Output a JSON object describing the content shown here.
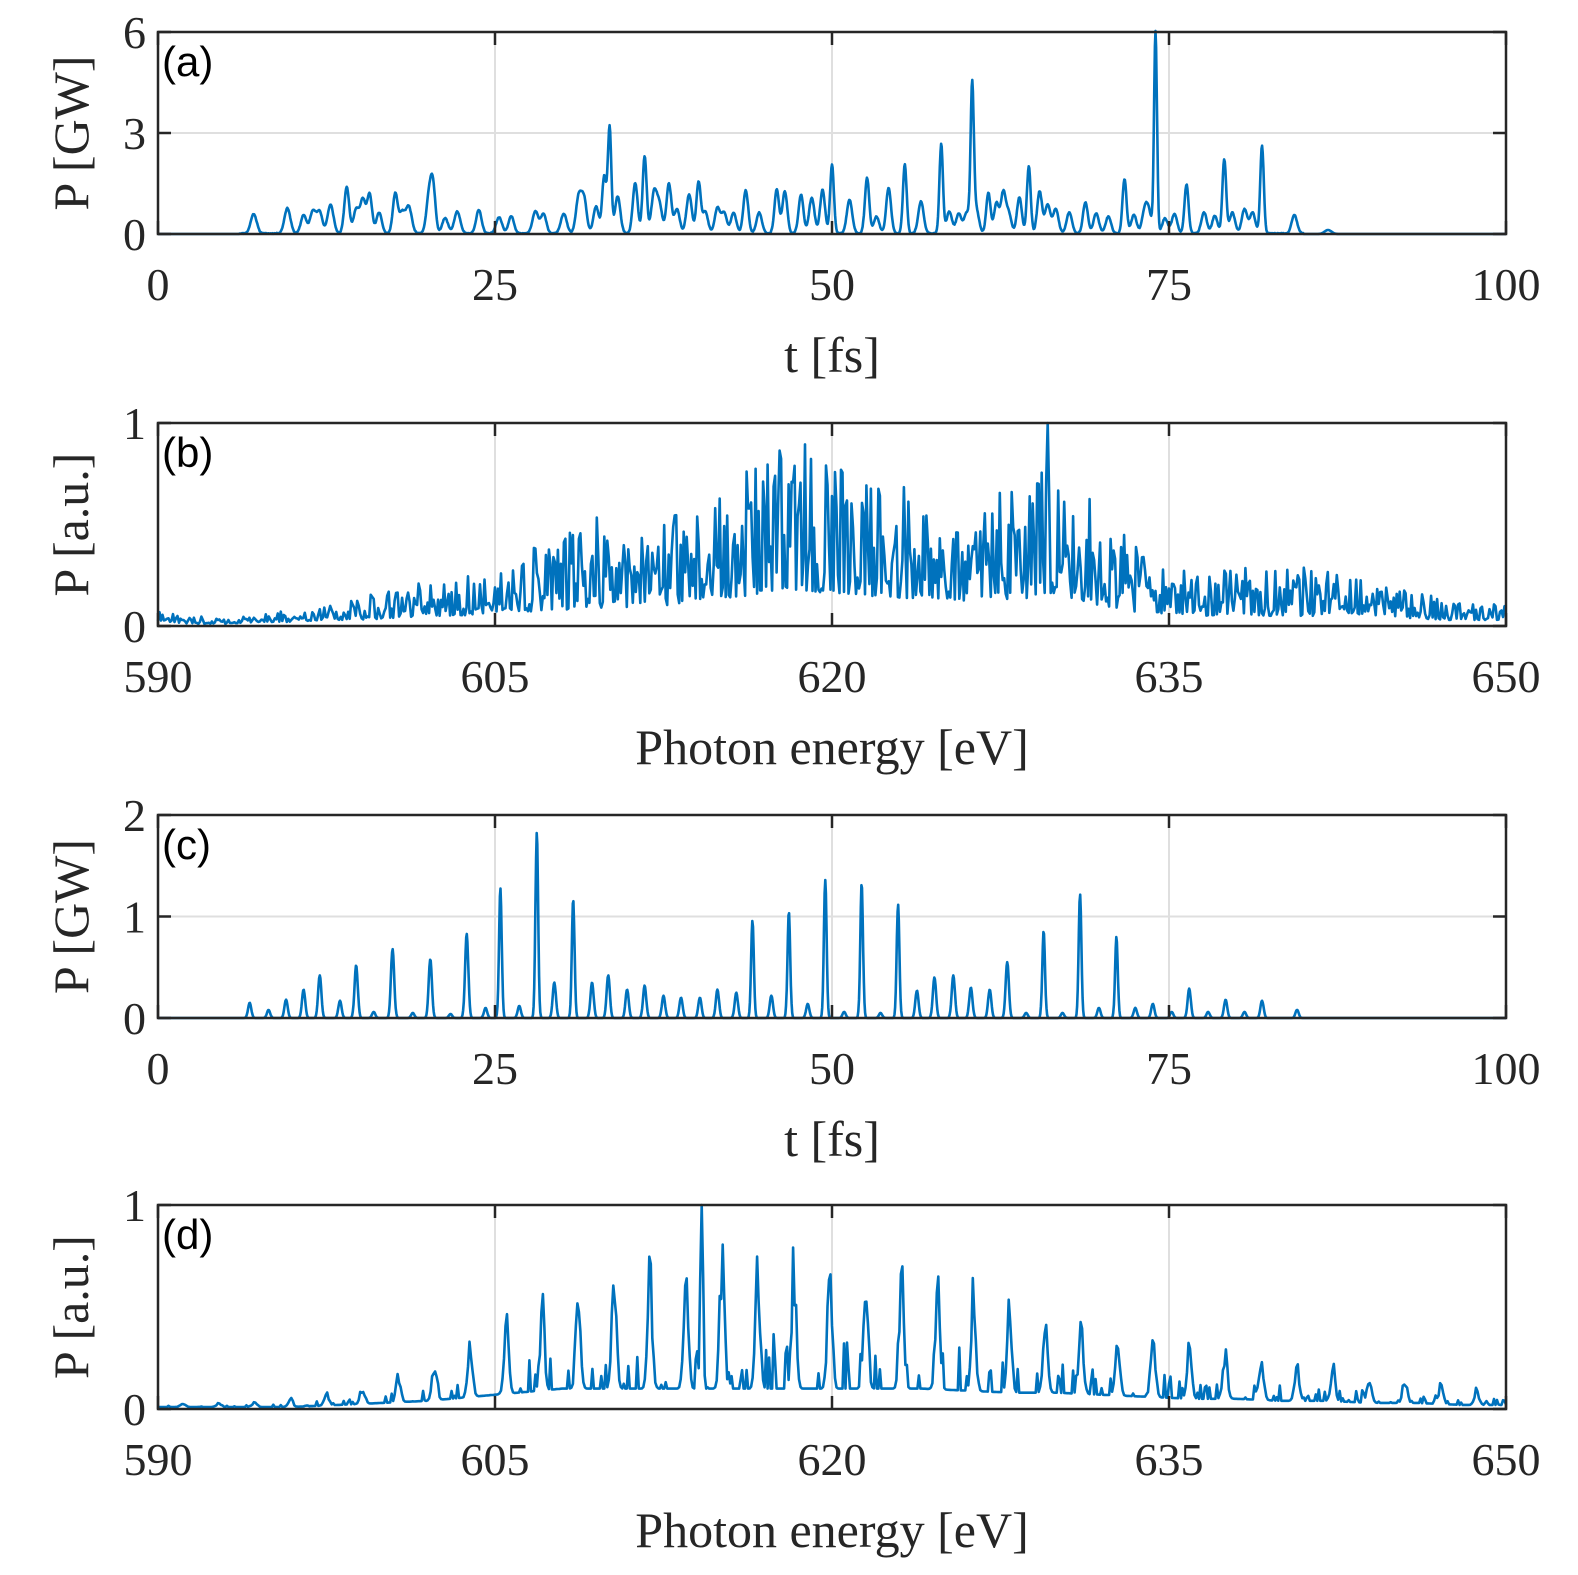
{
  "chart_data": [
    {
      "type": "line",
      "panel_label": "(a)",
      "xlabel": "t [fs]",
      "ylabel": "P [GW]",
      "xlim": [
        0,
        100
      ],
      "ylim": [
        0,
        6
      ],
      "xticks": [
        "0",
        "25",
        "50",
        "75",
        "100"
      ],
      "yticks": [
        "0",
        "3",
        "6"
      ],
      "grid": true,
      "series": [
        {
          "color": "#0072bd",
          "baseline": 0.02,
          "x": [
            7.1,
            9.6,
            10.8,
            11.5,
            12.0,
            12.8,
            14.0,
            14.7,
            15.2,
            15.7,
            16.4,
            17.6,
            18.1,
            18.6,
            20.1,
            20.4,
            21.3,
            22.2,
            23.8,
            25.3,
            26.2,
            28.0,
            28.6,
            30.1,
            31.2,
            31.6,
            32.5,
            33.1,
            33.5,
            34.1,
            35.4,
            36.1,
            36.8,
            37.2,
            37.9,
            38.5,
            39.4,
            40.1,
            40.6,
            41.5,
            42.0,
            42.7,
            43.6,
            44.6,
            45.9,
            46.5,
            47.7,
            48.5,
            49.3,
            50.0,
            51.3,
            52.6,
            53.3,
            54.2,
            55.4,
            56.6,
            58.1,
            58.7,
            59.4,
            60.0,
            60.4,
            60.7,
            61.6,
            62.2,
            62.7,
            63.1,
            63.9,
            64.6,
            65.4,
            66.0,
            66.6,
            67.6,
            68.8,
            69.6,
            70.5,
            71.7,
            72.4,
            73.2,
            73.5,
            74.0,
            74.7,
            75.4,
            76.3,
            77.6,
            78.4,
            79.1,
            79.7,
            80.6,
            81.2,
            81.9,
            84.3,
            86.8
          ],
          "peaks": [
            0.58,
            0.75,
            0.55,
            0.68,
            0.62,
            0.85,
            1.38,
            0.72,
            1.0,
            1.15,
            0.62,
            1.18,
            0.6,
            0.8,
            1.05,
            1.33,
            0.45,
            0.65,
            0.7,
            0.48,
            0.52,
            0.65,
            0.58,
            0.58,
            1.05,
            1.02,
            0.8,
            1.7,
            3.15,
            1.1,
            1.5,
            2.3,
            1.2,
            0.82,
            1.48,
            0.72,
            1.15,
            1.52,
            0.65,
            0.75,
            0.6,
            0.62,
            1.28,
            0.62,
            1.3,
            1.25,
            1.15,
            1.05,
            1.3,
            2.05,
            1.0,
            1.65,
            0.5,
            1.35,
            2.05,
            0.95,
            2.65,
            0.65,
            0.58,
            0.62,
            4.25,
            0.72,
            1.2,
            0.9,
            1.18,
            0.6,
            1.08,
            2.0,
            1.25,
            0.85,
            0.72,
            0.62,
            0.92,
            0.6,
            0.5,
            1.62,
            0.55,
            0.65,
            0.58,
            6.0,
            0.45,
            0.58,
            1.45,
            0.62,
            0.52,
            2.2,
            0.62,
            0.72,
            0.62,
            2.62,
            0.55,
            0.12
          ],
          "widths": [
            0.22,
            0.22,
            0.2,
            0.22,
            0.2,
            0.22,
            0.18,
            0.2,
            0.2,
            0.18,
            0.2,
            0.18,
            0.2,
            0.22,
            0.2,
            0.18,
            0.22,
            0.22,
            0.2,
            0.22,
            0.2,
            0.22,
            0.2,
            0.22,
            0.2,
            0.2,
            0.2,
            0.15,
            0.13,
            0.2,
            0.18,
            0.15,
            0.2,
            0.2,
            0.18,
            0.2,
            0.2,
            0.16,
            0.2,
            0.2,
            0.2,
            0.2,
            0.18,
            0.2,
            0.17,
            0.18,
            0.18,
            0.2,
            0.18,
            0.14,
            0.2,
            0.16,
            0.2,
            0.18,
            0.14,
            0.2,
            0.13,
            0.2,
            0.2,
            0.2,
            0.12,
            0.2,
            0.16,
            0.18,
            0.18,
            0.2,
            0.18,
            0.14,
            0.18,
            0.2,
            0.2,
            0.2,
            0.18,
            0.2,
            0.2,
            0.15,
            0.2,
            0.2,
            0.2,
            0.11,
            0.2,
            0.2,
            0.15,
            0.2,
            0.2,
            0.14,
            0.2,
            0.2,
            0.2,
            0.13,
            0.2,
            0.25
          ]
        }
      ]
    },
    {
      "type": "line",
      "panel_label": "(b)",
      "xlabel": "Photon energy [eV]",
      "ylabel": "P [a.u.]",
      "xlim": [
        590,
        650
      ],
      "ylim": [
        0,
        1
      ],
      "xticks": [
        "590",
        "605",
        "620",
        "635",
        "650"
      ],
      "yticks": [
        "0",
        "1"
      ],
      "grid": true,
      "series": [
        {
          "color": "#0072bd",
          "x": [
            590.0,
            591.5,
            593.0,
            594.5,
            596.0,
            597.5,
            599.0,
            600.5,
            602.0,
            603.5,
            605.0,
            606.5,
            608.0,
            609.5,
            611.0,
            612.5,
            614.0,
            615.5,
            617.0,
            618.5,
            620.0,
            621.5,
            623.0,
            624.5,
            626.0,
            627.5,
            629.0,
            630.5,
            632.0,
            633.5,
            635.0,
            636.5,
            638.0,
            639.5,
            641.0,
            642.5,
            644.0,
            645.5,
            647.0,
            648.5,
            650.0
          ],
          "upper": [
            0.08,
            0.05,
            0.04,
            0.06,
            0.08,
            0.12,
            0.15,
            0.2,
            0.22,
            0.25,
            0.3,
            0.4,
            0.45,
            0.55,
            0.4,
            0.5,
            0.65,
            0.75,
            0.85,
            0.9,
            0.88,
            0.8,
            0.7,
            0.6,
            0.55,
            0.7,
            0.8,
            0.85,
            0.55,
            0.4,
            0.3,
            0.25,
            0.3,
            0.28,
            0.3,
            0.28,
            0.2,
            0.18,
            0.16,
            0.15,
            0.12
          ],
          "lower": [
            0.02,
            0.01,
            0.01,
            0.02,
            0.02,
            0.03,
            0.03,
            0.04,
            0.05,
            0.05,
            0.06,
            0.07,
            0.08,
            0.09,
            0.08,
            0.1,
            0.12,
            0.14,
            0.16,
            0.18,
            0.16,
            0.15,
            0.14,
            0.13,
            0.12,
            0.13,
            0.14,
            0.14,
            0.1,
            0.07,
            0.06,
            0.05,
            0.06,
            0.05,
            0.05,
            0.05,
            0.04,
            0.04,
            0.03,
            0.03,
            0.03
          ],
          "samples": 900,
          "tallest_peak": {
            "x": 629.6,
            "y": 1.0
          }
        }
      ]
    },
    {
      "type": "line",
      "panel_label": "(c)",
      "xlabel": "t [fs]",
      "ylabel": "P [GW]",
      "xlim": [
        0,
        100
      ],
      "ylim": [
        0,
        2
      ],
      "xticks": [
        "0",
        "25",
        "50",
        "75",
        "100"
      ],
      "yticks": [
        "0",
        "1",
        "2"
      ],
      "grid": true,
      "series": [
        {
          "color": "#0072bd",
          "baseline": 0.0,
          "x": [
            6.8,
            8.2,
            9.5,
            10.8,
            12.0,
            13.5,
            14.7,
            16.0,
            17.4,
            18.9,
            20.2,
            21.7,
            22.9,
            24.3,
            25.4,
            26.8,
            28.1,
            29.4,
            30.8,
            32.2,
            33.4,
            34.8,
            36.1,
            37.5,
            38.8,
            40.2,
            41.5,
            42.9,
            44.1,
            45.5,
            46.8,
            48.2,
            49.5,
            50.9,
            52.2,
            53.6,
            54.9,
            56.3,
            57.6,
            59.0,
            60.3,
            61.7,
            63.0,
            64.4,
            65.7,
            67.1,
            68.4,
            69.8,
            71.1,
            72.5,
            73.8,
            75.2,
            76.5,
            77.9,
            79.2,
            80.6,
            81.9,
            84.5
          ],
          "peaks": [
            0.15,
            0.08,
            0.18,
            0.28,
            0.42,
            0.17,
            0.52,
            0.06,
            0.68,
            0.05,
            0.58,
            0.04,
            0.83,
            0.1,
            1.28,
            0.12,
            1.83,
            0.35,
            1.17,
            0.35,
            0.42,
            0.28,
            0.32,
            0.22,
            0.2,
            0.2,
            0.28,
            0.25,
            0.96,
            0.22,
            1.05,
            0.14,
            1.36,
            0.06,
            1.33,
            0.05,
            1.12,
            0.27,
            0.4,
            0.42,
            0.3,
            0.28,
            0.55,
            0.05,
            0.86,
            0.05,
            1.22,
            0.1,
            0.8,
            0.1,
            0.14,
            0.06,
            0.29,
            0.06,
            0.18,
            0.06,
            0.17,
            0.08
          ],
          "widths": [
            0.12,
            0.12,
            0.12,
            0.12,
            0.12,
            0.12,
            0.12,
            0.12,
            0.12,
            0.12,
            0.12,
            0.12,
            0.12,
            0.12,
            0.1,
            0.12,
            0.1,
            0.12,
            0.1,
            0.12,
            0.12,
            0.12,
            0.12,
            0.12,
            0.12,
            0.12,
            0.12,
            0.12,
            0.1,
            0.12,
            0.1,
            0.12,
            0.1,
            0.12,
            0.1,
            0.12,
            0.1,
            0.12,
            0.12,
            0.12,
            0.12,
            0.12,
            0.12,
            0.12,
            0.1,
            0.12,
            0.1,
            0.12,
            0.1,
            0.12,
            0.12,
            0.12,
            0.12,
            0.12,
            0.12,
            0.12,
            0.12,
            0.12
          ]
        }
      ]
    },
    {
      "type": "line",
      "panel_label": "(d)",
      "xlabel": "Photon energy [eV]",
      "ylabel": "P [a.u.]",
      "xlim": [
        590,
        650
      ],
      "ylim": [
        0,
        1
      ],
      "xticks": [
        "590",
        "605",
        "620",
        "635",
        "650"
      ],
      "yticks": [
        "0",
        "1"
      ],
      "grid": true,
      "series": [
        {
          "color": "#0072bd",
          "comb_start": 597.5,
          "comb_spacing": 1.6,
          "x": [
            590.0,
            592.0,
            594.0,
            596.0,
            598.0,
            600.0,
            602.0,
            604.0,
            606.0,
            608.0,
            610.0,
            612.0,
            614.0,
            616.0,
            618.0,
            620.0,
            622.0,
            624.0,
            626.0,
            628.0,
            630.0,
            632.0,
            634.0,
            636.0,
            638.0,
            640.0,
            642.0,
            644.0,
            646.0,
            648.0,
            650.0
          ],
          "upper": [
            0.03,
            0.03,
            0.04,
            0.06,
            0.1,
            0.15,
            0.25,
            0.38,
            0.52,
            0.66,
            0.74,
            0.8,
            0.84,
            0.86,
            0.87,
            0.88,
            0.86,
            0.82,
            0.7,
            0.56,
            0.5,
            0.45,
            0.4,
            0.36,
            0.32,
            0.28,
            0.24,
            0.2,
            0.16,
            0.12,
            0.1
          ],
          "lower": [
            0.01,
            0.01,
            0.01,
            0.01,
            0.02,
            0.03,
            0.04,
            0.06,
            0.08,
            0.1,
            0.1,
            0.1,
            0.1,
            0.1,
            0.1,
            0.1,
            0.1,
            0.1,
            0.09,
            0.08,
            0.08,
            0.07,
            0.06,
            0.05,
            0.05,
            0.04,
            0.04,
            0.03,
            0.03,
            0.02,
            0.02
          ],
          "samples": 900,
          "tallest_peak": {
            "x": 614.2,
            "y": 1.0
          }
        }
      ]
    }
  ]
}
